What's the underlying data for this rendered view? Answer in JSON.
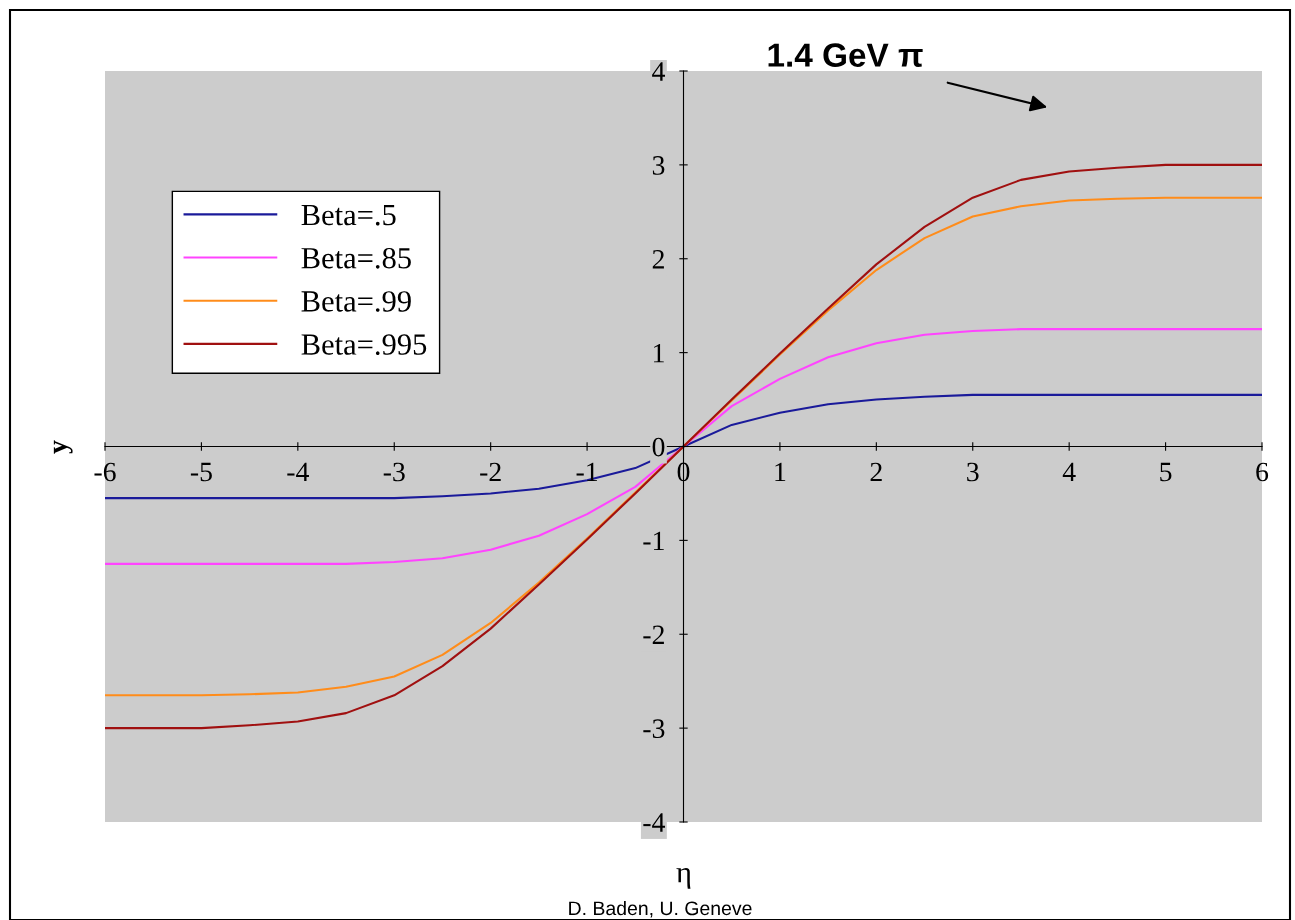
{
  "chart_data": {
    "type": "line",
    "title": "1.4 GeV π",
    "xlabel": "η",
    "ylabel": "y",
    "annotations": [
      "D. Baden, U. Geneve"
    ],
    "x": [
      -6,
      -5.5,
      -5,
      -4.5,
      -4,
      -3.5,
      -3,
      -2.5,
      -2,
      -1.5,
      -1,
      -0.5,
      0,
      0.5,
      1,
      1.5,
      2,
      2.5,
      3,
      3.5,
      4,
      4.5,
      5,
      5.5,
      6
    ],
    "series": [
      {
        "name": "Beta=.5",
        "color": "#1a1a9a",
        "values": [
          -0.55,
          -0.55,
          -0.55,
          -0.55,
          -0.55,
          -0.55,
          -0.55,
          -0.53,
          -0.5,
          -0.45,
          -0.36,
          -0.23,
          0,
          0.23,
          0.36,
          0.45,
          0.5,
          0.53,
          0.55,
          0.55,
          0.55,
          0.55,
          0.55,
          0.55,
          0.55
        ]
      },
      {
        "name": "Beta=.85",
        "color": "#ff44ff",
        "values": [
          -1.25,
          -1.25,
          -1.25,
          -1.25,
          -1.25,
          -1.25,
          -1.23,
          -1.19,
          -1.1,
          -0.95,
          -0.72,
          -0.43,
          0,
          0.43,
          0.72,
          0.95,
          1.1,
          1.19,
          1.23,
          1.25,
          1.25,
          1.25,
          1.25,
          1.25,
          1.25
        ]
      },
      {
        "name": "Beta=.99",
        "color": "#ff8c1a",
        "values": [
          -2.65,
          -2.65,
          -2.65,
          -2.64,
          -2.62,
          -2.56,
          -2.45,
          -2.22,
          -1.88,
          -1.45,
          -0.98,
          -0.49,
          0,
          0.49,
          0.98,
          1.45,
          1.88,
          2.22,
          2.45,
          2.56,
          2.62,
          2.64,
          2.65,
          2.65,
          2.65
        ]
      },
      {
        "name": "Beta=.995",
        "color": "#a01010",
        "values": [
          -3.0,
          -3.0,
          -3.0,
          -2.97,
          -2.93,
          -2.84,
          -2.65,
          -2.34,
          -1.94,
          -1.47,
          -0.99,
          -0.5,
          0,
          0.5,
          0.99,
          1.47,
          1.94,
          2.34,
          2.65,
          2.84,
          2.93,
          2.97,
          3.0,
          3.0,
          3.0
        ]
      }
    ],
    "xlim": [
      -6,
      6
    ],
    "ylim": [
      -4,
      4
    ],
    "xticks": [
      -6,
      -5,
      -4,
      -3,
      -2,
      -1,
      0,
      1,
      2,
      3,
      4,
      5,
      6
    ],
    "yticks": [
      -4,
      -3,
      -2,
      -1,
      0,
      1,
      2,
      3,
      4
    ],
    "grid": false,
    "legend": "top left",
    "marker": "none",
    "line_style": "solid"
  }
}
